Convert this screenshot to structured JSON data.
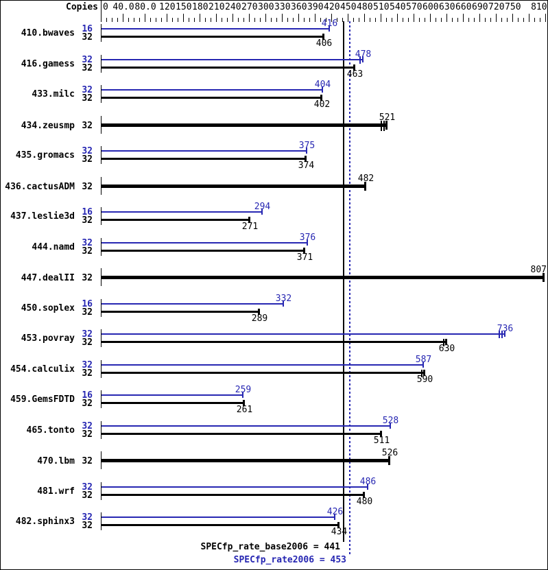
{
  "chart_data": {
    "type": "bar",
    "orientation": "horizontal",
    "copies_header": "Copies",
    "xlim": [
      0,
      810
    ],
    "minor_tick_step": 10,
    "axis_labels": [
      {
        "v": 0,
        "t": "0"
      },
      {
        "v": 40,
        "t": "40.0"
      },
      {
        "v": 80,
        "t": "80.0"
      },
      {
        "v": 120,
        "t": "120"
      },
      {
        "v": 150,
        "t": "150"
      },
      {
        "v": 180,
        "t": "180"
      },
      {
        "v": 210,
        "t": "210"
      },
      {
        "v": 240,
        "t": "240"
      },
      {
        "v": 270,
        "t": "270"
      },
      {
        "v": 300,
        "t": "300"
      },
      {
        "v": 330,
        "t": "330"
      },
      {
        "v": 360,
        "t": "360"
      },
      {
        "v": 390,
        "t": "390"
      },
      {
        "v": 420,
        "t": "420"
      },
      {
        "v": 450,
        "t": "450"
      },
      {
        "v": 480,
        "t": "480"
      },
      {
        "v": 510,
        "t": "510"
      },
      {
        "v": 540,
        "t": "540"
      },
      {
        "v": 570,
        "t": "570"
      },
      {
        "v": 600,
        "t": "600"
      },
      {
        "v": 630,
        "t": "630"
      },
      {
        "v": 660,
        "t": "660"
      },
      {
        "v": 690,
        "t": "690"
      },
      {
        "v": 720,
        "t": "720"
      },
      {
        "v": 750,
        "t": "750"
      },
      {
        "v": 810,
        "t": "810"
      }
    ],
    "major_ticks": [
      40,
      80,
      120,
      150,
      180,
      210,
      240,
      270,
      300,
      330,
      360,
      390,
      420,
      450,
      480,
      510,
      540,
      570,
      600,
      630,
      660,
      690,
      720,
      750,
      780,
      810
    ],
    "rows": [
      {
        "name": "410.bwaves",
        "bars": [
          {
            "copies": "16",
            "value": 416,
            "kind": "peak",
            "marks": 1
          },
          {
            "copies": "32",
            "value": 406,
            "kind": "base",
            "marks": 1
          }
        ]
      },
      {
        "name": "416.gamess",
        "bars": [
          {
            "copies": "32",
            "value": 478,
            "kind": "peak",
            "marks": 2
          },
          {
            "copies": "32",
            "value": 463,
            "kind": "base",
            "marks": 1
          }
        ]
      },
      {
        "name": "433.milc",
        "bars": [
          {
            "copies": "32",
            "value": 404,
            "kind": "peak",
            "marks": 1
          },
          {
            "copies": "32",
            "value": 402,
            "kind": "base",
            "marks": 1
          }
        ]
      },
      {
        "name": "434.zeusmp",
        "bars": [
          {
            "copies": "32",
            "value": 521,
            "kind": "both",
            "marks": 3
          }
        ]
      },
      {
        "name": "435.gromacs",
        "bars": [
          {
            "copies": "32",
            "value": 375,
            "kind": "peak",
            "marks": 1
          },
          {
            "copies": "32",
            "value": 374,
            "kind": "base",
            "marks": 1
          }
        ]
      },
      {
        "name": "436.cactusADM",
        "bars": [
          {
            "copies": "32",
            "value": 482,
            "kind": "both",
            "marks": 1
          }
        ]
      },
      {
        "name": "437.leslie3d",
        "bars": [
          {
            "copies": "16",
            "value": 294,
            "kind": "peak",
            "marks": 1
          },
          {
            "copies": "32",
            "value": 271,
            "kind": "base",
            "marks": 1
          }
        ]
      },
      {
        "name": "444.namd",
        "bars": [
          {
            "copies": "32",
            "value": 376,
            "kind": "peak",
            "marks": 1
          },
          {
            "copies": "32",
            "value": 371,
            "kind": "base",
            "marks": 1
          }
        ]
      },
      {
        "name": "447.dealII",
        "bars": [
          {
            "copies": "32",
            "value": 807,
            "kind": "both",
            "marks": 1
          }
        ]
      },
      {
        "name": "450.soplex",
        "bars": [
          {
            "copies": "16",
            "value": 332,
            "kind": "peak",
            "marks": 1
          },
          {
            "copies": "32",
            "value": 289,
            "kind": "base",
            "marks": 1
          }
        ]
      },
      {
        "name": "453.povray",
        "bars": [
          {
            "copies": "32",
            "value": 736,
            "kind": "peak",
            "marks": 3
          },
          {
            "copies": "32",
            "value": 630,
            "kind": "base",
            "marks": 2
          }
        ]
      },
      {
        "name": "454.calculix",
        "bars": [
          {
            "copies": "32",
            "value": 587,
            "kind": "peak",
            "marks": 1
          },
          {
            "copies": "32",
            "value": 590,
            "kind": "base",
            "marks": 2
          }
        ]
      },
      {
        "name": "459.GemsFDTD",
        "bars": [
          {
            "copies": "16",
            "value": 259,
            "kind": "peak",
            "marks": 1
          },
          {
            "copies": "32",
            "value": 261,
            "kind": "base",
            "marks": 1
          }
        ]
      },
      {
        "name": "465.tonto",
        "bars": [
          {
            "copies": "32",
            "value": 528,
            "kind": "peak",
            "marks": 1
          },
          {
            "copies": "32",
            "value": 511,
            "kind": "base",
            "marks": 1
          }
        ]
      },
      {
        "name": "470.lbm",
        "bars": [
          {
            "copies": "32",
            "value": 526,
            "kind": "both",
            "marks": 1
          }
        ]
      },
      {
        "name": "481.wrf",
        "bars": [
          {
            "copies": "32",
            "value": 486,
            "kind": "peak",
            "marks": 1
          },
          {
            "copies": "32",
            "value": 480,
            "kind": "base",
            "marks": 1
          }
        ]
      },
      {
        "name": "482.sphinx3",
        "bars": [
          {
            "copies": "32",
            "value": 426,
            "kind": "peak",
            "marks": 1
          },
          {
            "copies": "32",
            "value": 434,
            "kind": "base",
            "marks": 1
          }
        ]
      }
    ],
    "reference_lines": [
      {
        "id": "base",
        "value": 441,
        "label": "SPECfp_rate_base2006 = 441",
        "style": "solid",
        "color": "#000000"
      },
      {
        "id": "peak",
        "value": 453,
        "label": "SPECfp_rate2006 = 453",
        "style": "dotted",
        "color": "#2626b2"
      }
    ],
    "colors": {
      "peak": "#2626b2",
      "base": "#000000"
    }
  }
}
